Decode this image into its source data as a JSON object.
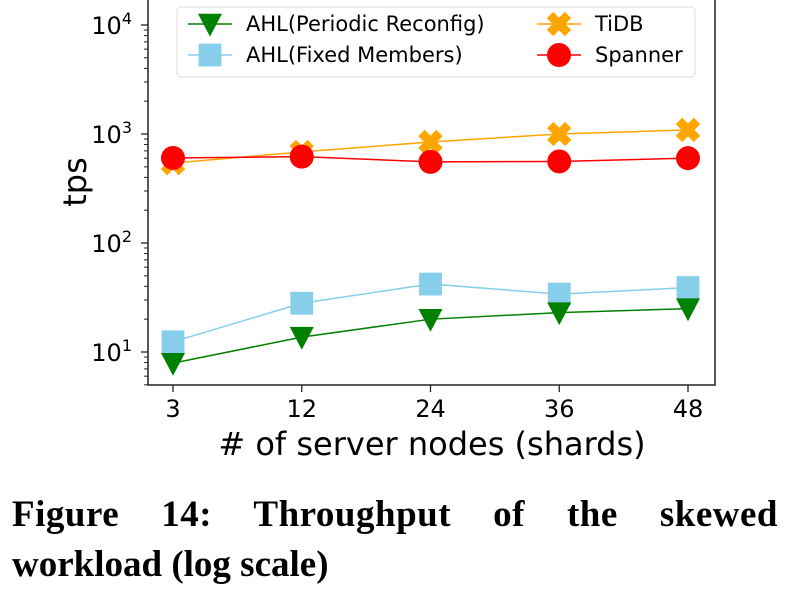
{
  "chart_data": {
    "type": "line",
    "title": "",
    "xlabel": "# of server nodes (shards)",
    "ylabel": "tps",
    "yscale": "log",
    "ylim": [
      5,
      15000
    ],
    "x": [
      "3",
      "12",
      "24",
      "36",
      "48"
    ],
    "yticks": [
      {
        "value": 10,
        "base": "10",
        "exp": "1"
      },
      {
        "value": 100,
        "base": "10",
        "exp": "2"
      },
      {
        "value": 1000,
        "base": "10",
        "exp": "3"
      },
      {
        "value": 10000,
        "base": "10",
        "exp": "4"
      }
    ],
    "grid": false,
    "legend_position": "top",
    "series": [
      {
        "name": "AHL(Periodic Reconfig)",
        "color": "#008000",
        "marker": "triangle-down",
        "values": [
          7.9,
          13.7,
          20,
          23,
          25
        ]
      },
      {
        "name": "AHL(Fixed Members)",
        "color": "#87ceeb",
        "marker": "square",
        "values": [
          12.4,
          28,
          42,
          34,
          39
        ]
      },
      {
        "name": "TiDB",
        "color": "#ffa500",
        "marker": "x-filled",
        "values": [
          540,
          685,
          845,
          1000,
          1090
        ]
      },
      {
        "name": "Spanner",
        "color": "#ff0000",
        "marker": "circle",
        "values": [
          603,
          620,
          555,
          560,
          600
        ]
      }
    ]
  },
  "caption": {
    "line1": "Figure 14: Throughput of the skewed",
    "line2": "workload (log scale)"
  }
}
